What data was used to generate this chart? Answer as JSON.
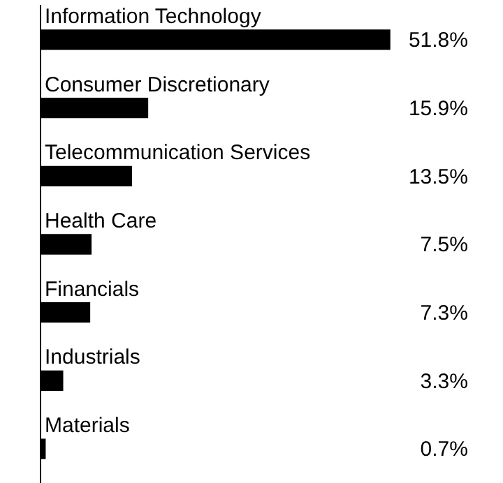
{
  "chart_data": {
    "type": "bar",
    "orientation": "horizontal",
    "categories": [
      "Information Technology",
      "Consumer Discretionary",
      "Telecommunication Services",
      "Health Care",
      "Financials",
      "Industrials",
      "Materials"
    ],
    "values": [
      51.8,
      15.9,
      13.5,
      7.5,
      7.3,
      3.3,
      0.7
    ],
    "value_labels": [
      "51.8%",
      "15.9%",
      "13.5%",
      "7.5%",
      "7.3%",
      "3.3%",
      "0.7%"
    ],
    "color": "#000000",
    "xlim": [
      0,
      52
    ],
    "tick_labels": false,
    "grid": false,
    "legend": false
  }
}
